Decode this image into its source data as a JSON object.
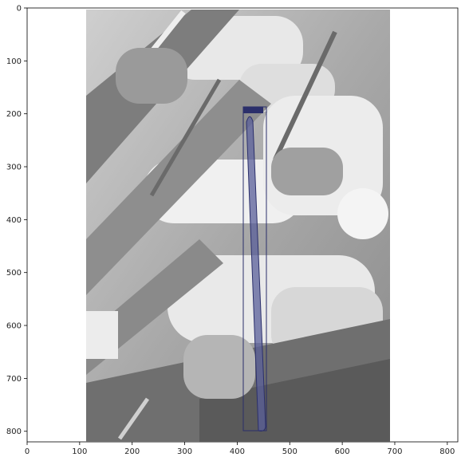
{
  "figure": {
    "x_ticks": [
      "0",
      "100",
      "200",
      "300",
      "400",
      "500",
      "600",
      "700",
      "800"
    ],
    "y_ticks": [
      "0",
      "100",
      "200",
      "300",
      "400",
      "500",
      "600",
      "700",
      "800"
    ],
    "image_extent": {
      "x": [
        0,
        820
      ],
      "y": [
        820,
        0
      ]
    },
    "x_tick_values": [
      0,
      100,
      200,
      300,
      400,
      500,
      600,
      700,
      800
    ],
    "y_tick_values": [
      0,
      100,
      200,
      300,
      400,
      500,
      600,
      700,
      800
    ],
    "photo": {
      "description_icon": "grayscale-abstract-photo",
      "extent": {
        "x": [
          112,
          686
        ],
        "y": [
          2,
          820
        ]
      }
    },
    "annotation": {
      "bbox_color": "#2b2f6b",
      "mask_color": "#5a5f9a",
      "object_box": {
        "x": [
          409,
          452
        ],
        "y": [
          188,
          800
        ]
      }
    }
  }
}
